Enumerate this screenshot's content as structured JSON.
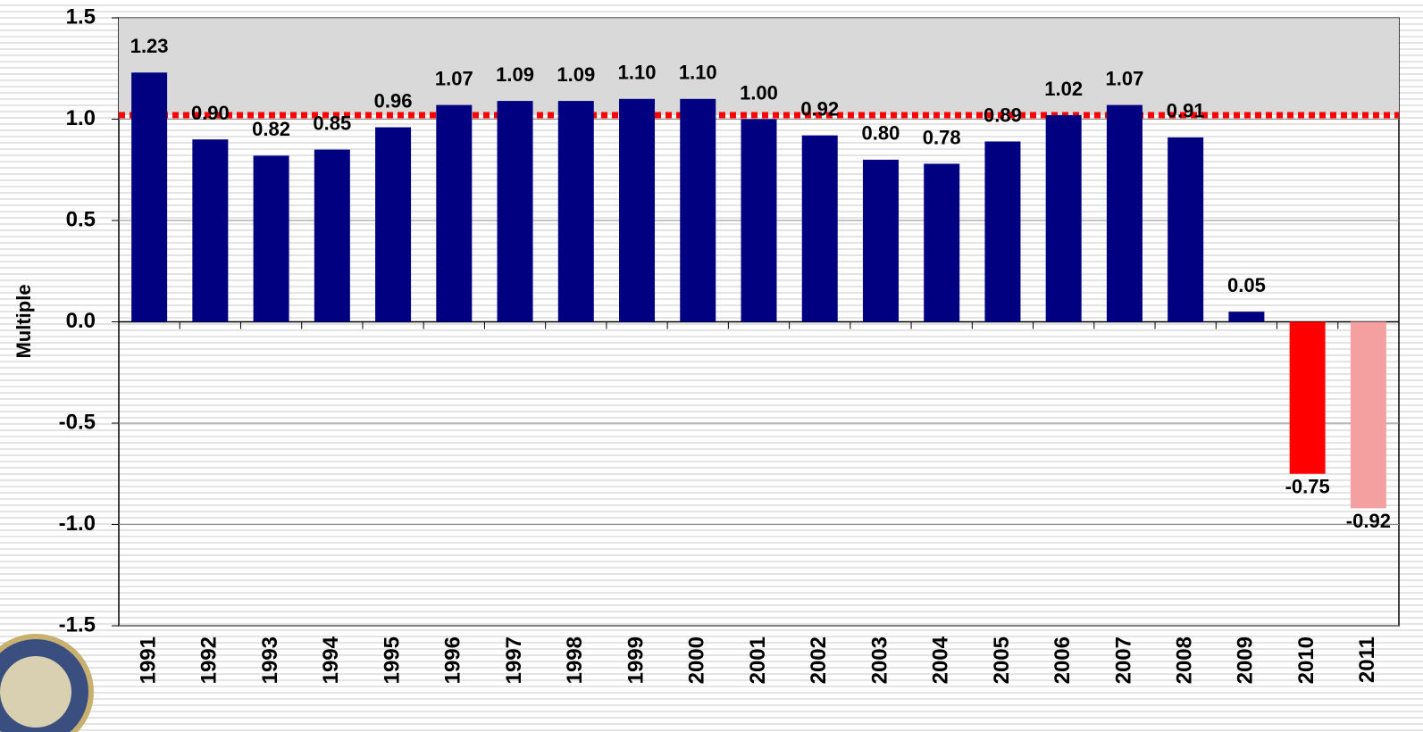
{
  "chart_data": {
    "type": "bar",
    "y_axis_label": "Multiple",
    "categories": [
      "1991",
      "1992",
      "1993",
      "1994",
      "1995",
      "1996",
      "1997",
      "1998",
      "1999",
      "2000",
      "2001",
      "2002",
      "2003",
      "2004",
      "2005",
      "2006",
      "2007",
      "2008",
      "2009",
      "2010",
      "2011"
    ],
    "values": [
      1.23,
      0.9,
      0.82,
      0.85,
      0.96,
      1.07,
      1.09,
      1.09,
      1.1,
      1.1,
      1.0,
      0.92,
      0.8,
      0.78,
      0.89,
      1.02,
      1.07,
      0.91,
      0.05,
      -0.75,
      -0.92
    ],
    "value_labels": [
      "1.23",
      "0.90",
      "0.82",
      "0.85",
      "0.96",
      "1.07",
      "1.09",
      "1.09",
      "1.10",
      "1.10",
      "1.00",
      "0.92",
      "0.80",
      "0.78",
      "0.89",
      "1.02",
      "1.07",
      "0.91",
      "0.05",
      "-0.75",
      "-0.92"
    ],
    "colors": [
      "#000080",
      "#000080",
      "#000080",
      "#000080",
      "#000080",
      "#000080",
      "#000080",
      "#000080",
      "#000080",
      "#000080",
      "#000080",
      "#000080",
      "#000080",
      "#000080",
      "#000080",
      "#000080",
      "#000080",
      "#000080",
      "#000080",
      "#ff0000",
      "#f4a0a0"
    ],
    "ylim": [
      -1.5,
      1.5
    ],
    "yticks": [
      1.5,
      {
        "value": 1.0,
        "label": "1.0"
      },
      0.5,
      {
        "value": 0.0,
        "label": "0.0"
      },
      -0.5,
      {
        "value": -1.0,
        "label": "-1.0"
      },
      -1.5
    ],
    "grid": true,
    "reference_line": {
      "value": 1.02,
      "color": "#ff0000"
    }
  }
}
